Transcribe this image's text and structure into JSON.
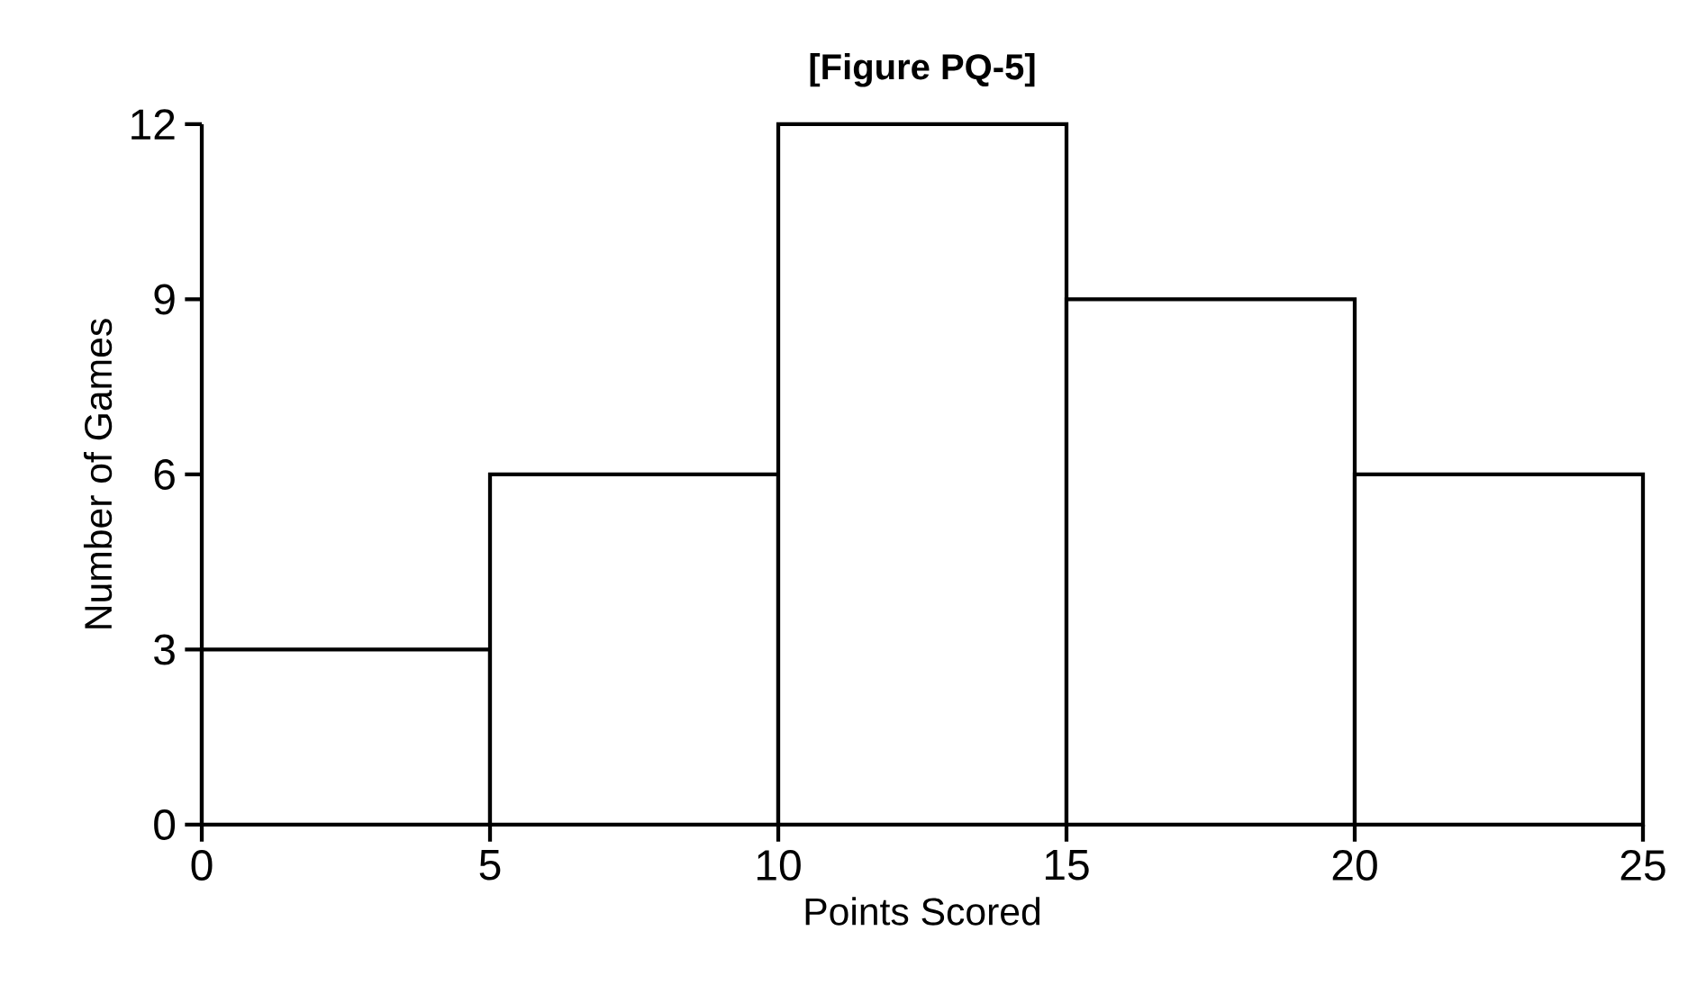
{
  "chart_data": {
    "type": "histogram",
    "title": "[Figure PQ-5]",
    "xlabel": "Points Scored",
    "ylabel": "Number of Games",
    "bins": [
      0,
      5,
      10,
      15,
      20,
      25
    ],
    "values": [
      3,
      6,
      12,
      9,
      6
    ],
    "color": "#ffffff",
    "xlim": [
      0,
      25
    ],
    "xticks": [
      0,
      5,
      10,
      15,
      20,
      25
    ],
    "ylim": [
      0,
      12
    ],
    "yticks": [
      0,
      3,
      6,
      9,
      12
    ]
  }
}
